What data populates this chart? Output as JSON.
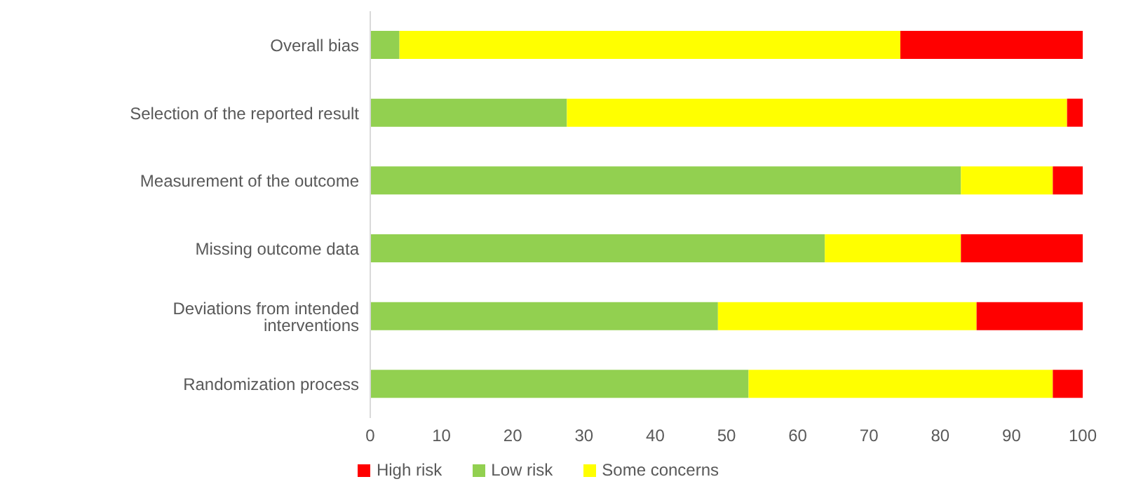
{
  "chart_data": {
    "type": "bar",
    "orientation": "horizontal",
    "stacked": true,
    "categories": [
      "Overall bias",
      "Selection of the reported result",
      "Measurement of the outcome",
      "Missing outcome data",
      "Deviations from intended interventions",
      "Randomization process"
    ],
    "series": [
      {
        "name": "Low risk",
        "color": "#92d050",
        "values": [
          4.1,
          27.6,
          82.9,
          63.8,
          48.8,
          53.1
        ]
      },
      {
        "name": "Some concerns",
        "color": "#ffff00",
        "values": [
          70.3,
          70.2,
          12.9,
          19.1,
          36.3,
          42.7
        ]
      },
      {
        "name": "High risk",
        "color": "#ff0000",
        "values": [
          25.6,
          2.2,
          4.2,
          17.1,
          14.9,
          4.2
        ]
      }
    ],
    "xlim": [
      0,
      100
    ],
    "xticks": [
      0,
      10,
      20,
      30,
      40,
      50,
      60,
      70,
      80,
      90,
      100
    ],
    "grid": false,
    "legend": "bottom"
  }
}
